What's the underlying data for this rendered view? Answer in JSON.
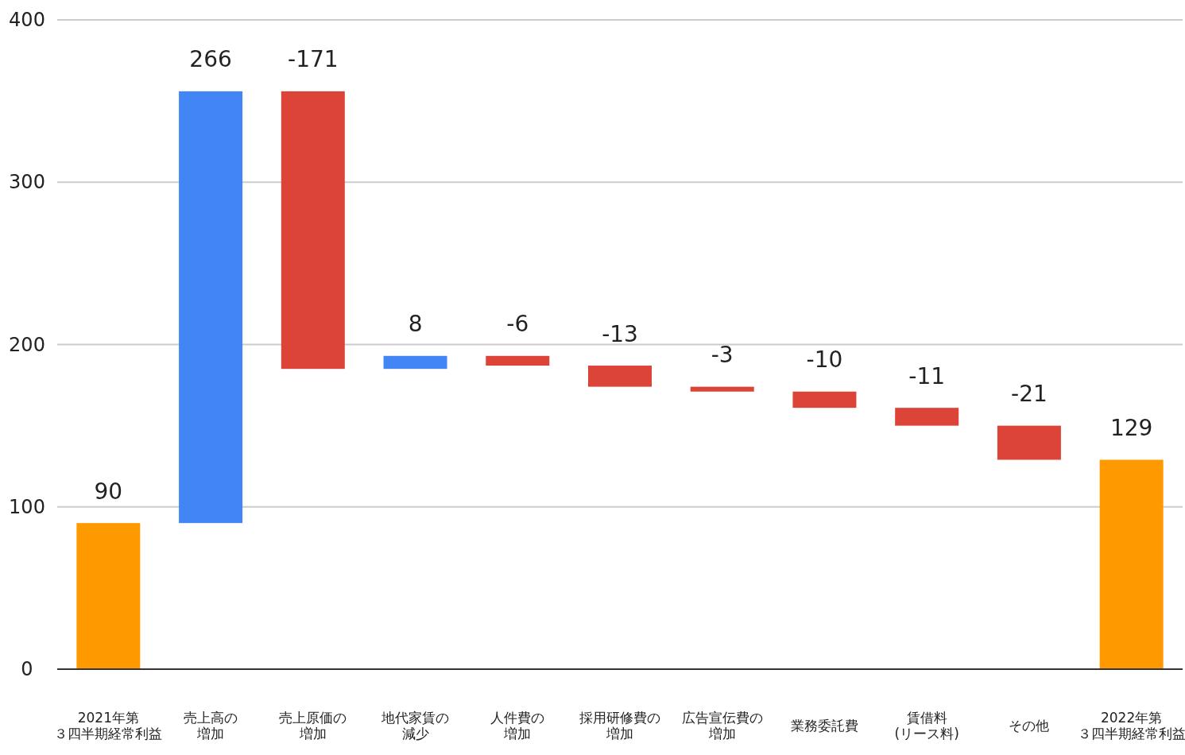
{
  "chart_data": {
    "type": "bar",
    "categories": [
      "2021年第３四半期経常利益",
      "売上高の増加",
      "売上原価の増加",
      "地代家賃の減少",
      "人件費の増加",
      "採用研修費の増加",
      "広告宣伝費の増加",
      "業務委託費",
      "賃借料(リース料)",
      "その他",
      "2022年第３四半期経常利益"
    ],
    "values": [
      90,
      266,
      -171,
      8,
      -6,
      -13,
      -3,
      -10,
      -11,
      -21,
      129
    ],
    "base": [
      0,
      90,
      356,
      185,
      193,
      187,
      174,
      171,
      161,
      150,
      0
    ],
    "colors": [
      "#ff9900",
      "#4285f4",
      "#db4437",
      "#4285f4",
      "#db4437",
      "#db4437",
      "#db4437",
      "#db4437",
      "#db4437",
      "#db4437",
      "#ff9900"
    ],
    "ylim": [
      0,
      400
    ],
    "yticks": [
      0,
      100,
      200,
      300,
      400
    ],
    "grid": "y",
    "data_labels": true
  }
}
